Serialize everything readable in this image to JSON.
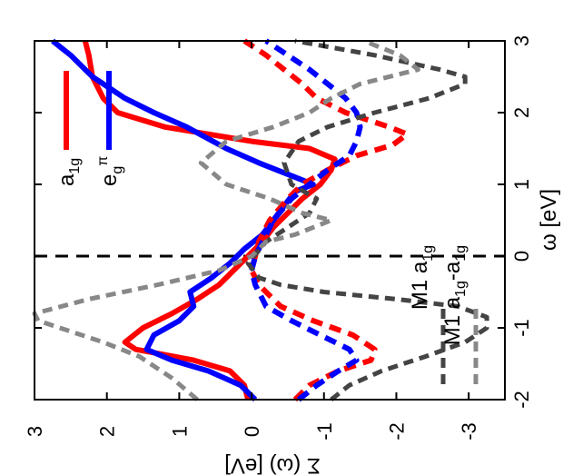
{
  "chart_data": {
    "type": "line",
    "orientation": "rotated-90-clockwise",
    "xlabel": "ω [eV]",
    "ylabel": "Σ (ω) [eV]",
    "xlim": [
      -2,
      3
    ],
    "ylim": [
      -3.5,
      3
    ],
    "x_ticks": [
      "-2",
      "-1",
      "0",
      "1",
      "2",
      "3"
    ],
    "y_ticks": [
      "-3",
      "-2",
      "-1",
      "0",
      "1",
      "2",
      "3"
    ],
    "grid": false,
    "legend_top": {
      "placement": "top-right",
      "entries": [
        {
          "base": "a",
          "sub": "1g",
          "sup": ""
        },
        {
          "base": "e",
          "sub": "g",
          "sup": "π"
        }
      ]
    },
    "legend_bottom": {
      "placement": "bottom-left",
      "entries": [
        {
          "text": "M1 a",
          "sub": "1g",
          "text2": "",
          "sub2": ""
        },
        {
          "text": "M1 a",
          "sub": "1g",
          "text2": "-a",
          "sub2": "1g"
        }
      ]
    },
    "series": [
      {
        "legend_index": 0,
        "color": "#ff0000",
        "dash": "solid",
        "width": 6,
        "x": [
          -2.0,
          -1.8,
          -1.6,
          -1.45,
          -1.3,
          -1.2,
          -1.0,
          -0.8,
          -0.6,
          -0.4,
          -0.2,
          0.0,
          0.2,
          0.4,
          0.6,
          0.8,
          1.0,
          1.2,
          1.35,
          1.5,
          1.6,
          1.7,
          1.8,
          2.0,
          2.2,
          2.5,
          2.8,
          3.0
        ],
        "y": [
          0.05,
          0.1,
          0.3,
          0.8,
          1.6,
          1.75,
          1.5,
          1.1,
          0.75,
          0.45,
          0.25,
          0.05,
          -0.15,
          -0.3,
          -0.5,
          -0.7,
          -0.95,
          -1.1,
          -1.15,
          -0.8,
          0.0,
          0.6,
          1.2,
          1.85,
          2.05,
          2.2,
          2.25,
          2.3
        ]
      },
      {
        "legend_index": 1,
        "color": "#0000ff",
        "dash": "solid",
        "width": 6,
        "x": [
          -2.0,
          -1.8,
          -1.6,
          -1.45,
          -1.3,
          -1.1,
          -0.9,
          -0.7,
          -0.5,
          -0.3,
          -0.1,
          0.1,
          0.3,
          0.5,
          0.7,
          0.9,
          1.0,
          1.1,
          1.3,
          1.5,
          1.8,
          2.0,
          2.2,
          2.5,
          2.8,
          3.0
        ],
        "y": [
          -0.05,
          0.15,
          0.6,
          1.1,
          1.45,
          1.35,
          1.0,
          0.8,
          0.85,
          0.55,
          0.3,
          0.1,
          -0.15,
          -0.3,
          -0.45,
          -0.6,
          -0.85,
          -0.6,
          -0.1,
          0.35,
          0.9,
          1.35,
          1.75,
          2.2,
          2.5,
          2.75
        ]
      },
      {
        "legend_index": 0,
        "color": "#ff0000",
        "dash": "dashed",
        "width": 6,
        "x": [
          -2.0,
          -1.8,
          -1.6,
          -1.45,
          -1.3,
          -1.1,
          -0.9,
          -0.7,
          -0.4,
          -0.2,
          0.0,
          0.2,
          0.5,
          0.8,
          1.0,
          1.2,
          1.4,
          1.55,
          1.7,
          1.8,
          2.0,
          2.2,
          2.4,
          2.6,
          2.8,
          3.0
        ],
        "y": [
          -0.6,
          -0.8,
          -1.2,
          -1.65,
          -1.7,
          -1.4,
          -0.85,
          -0.4,
          -0.1,
          0.0,
          -0.05,
          -0.1,
          -0.25,
          -0.5,
          -0.7,
          -1.05,
          -1.45,
          -1.95,
          -2.15,
          -1.9,
          -1.3,
          -0.9,
          -0.7,
          -0.45,
          -0.2,
          0.1
        ]
      },
      {
        "legend_index": 1,
        "color": "#0000ff",
        "dash": "dashed",
        "width": 6,
        "x": [
          -2.0,
          -1.8,
          -1.6,
          -1.45,
          -1.3,
          -1.1,
          -0.9,
          -0.7,
          -0.4,
          -0.2,
          0.0,
          0.2,
          0.5,
          0.8,
          1.0,
          1.2,
          1.4,
          1.6,
          1.8,
          2.0,
          2.2,
          2.4,
          2.6,
          2.8,
          3.0
        ],
        "y": [
          -0.65,
          -0.9,
          -1.2,
          -1.45,
          -1.35,
          -0.95,
          -0.55,
          -0.2,
          -0.05,
          0.0,
          -0.05,
          -0.15,
          -0.3,
          -0.55,
          -0.8,
          -1.05,
          -1.35,
          -1.45,
          -1.5,
          -1.45,
          -1.3,
          -1.05,
          -0.8,
          -0.5,
          -0.2
        ]
      },
      {
        "legend_index": -1,
        "color": "#444444",
        "dash": "dashed",
        "width": 5,
        "x": [
          -2.0,
          -1.8,
          -1.6,
          -1.4,
          -1.2,
          -1.0,
          -0.85,
          -0.7,
          -0.6,
          -0.5,
          -0.4,
          -0.3,
          -0.1,
          0.2,
          0.4,
          0.6,
          0.8,
          1.0,
          1.3,
          1.6,
          1.8,
          2.0,
          2.2,
          2.4,
          2.5,
          2.6,
          2.8,
          3.0
        ],
        "y": [
          -1.1,
          -1.35,
          -1.8,
          -2.4,
          -2.95,
          -3.25,
          -3.25,
          -2.85,
          -2.0,
          -1.0,
          -0.4,
          -0.1,
          0.05,
          -0.2,
          -0.5,
          -0.8,
          -0.9,
          -0.55,
          -0.45,
          -0.65,
          -1.05,
          -1.7,
          -2.45,
          -2.95,
          -2.95,
          -2.6,
          -1.7,
          -0.6
        ]
      },
      {
        "legend_index": -1,
        "color": "#888888",
        "dash": "dashed",
        "width": 5,
        "x": [
          -2.0,
          -1.7,
          -1.4,
          -1.2,
          -1.0,
          -0.9,
          -0.8,
          -0.6,
          -0.4,
          -0.2,
          0.0,
          0.2,
          0.3,
          0.4,
          0.5,
          0.6,
          0.8,
          1.0,
          1.3,
          1.6,
          1.8,
          2.0,
          2.2,
          2.4,
          2.6,
          2.8,
          3.0
        ],
        "y": [
          0.75,
          1.1,
          1.55,
          2.05,
          2.65,
          2.95,
          3.0,
          2.25,
          1.3,
          0.45,
          0.0,
          -0.2,
          -0.6,
          -0.85,
          -1.1,
          -0.7,
          -0.25,
          0.35,
          0.7,
          0.35,
          -0.3,
          -0.8,
          -1.1,
          -1.5,
          -2.3,
          -2.05,
          -1.55
        ]
      }
    ],
    "legend_styles": [
      {
        "color": "#ff0000",
        "dash": "solid",
        "width": 6
      },
      {
        "color": "#0000ff",
        "dash": "solid",
        "width": 6
      },
      {
        "color": "#444444",
        "dash": "dashed",
        "width": 5
      },
      {
        "color": "#888888",
        "dash": "dashed",
        "width": 5
      }
    ]
  }
}
